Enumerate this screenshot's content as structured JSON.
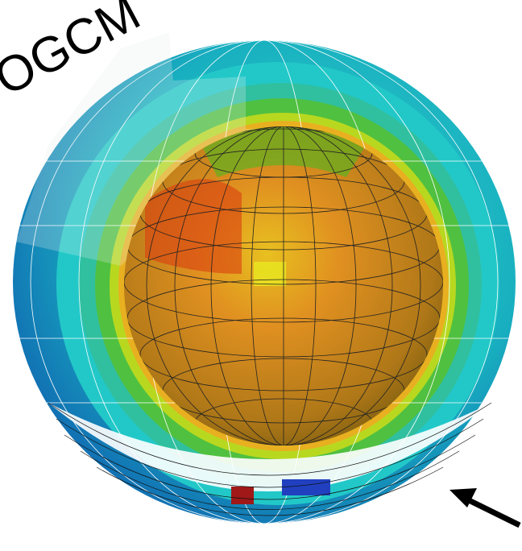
{
  "label": "OGCM"
}
